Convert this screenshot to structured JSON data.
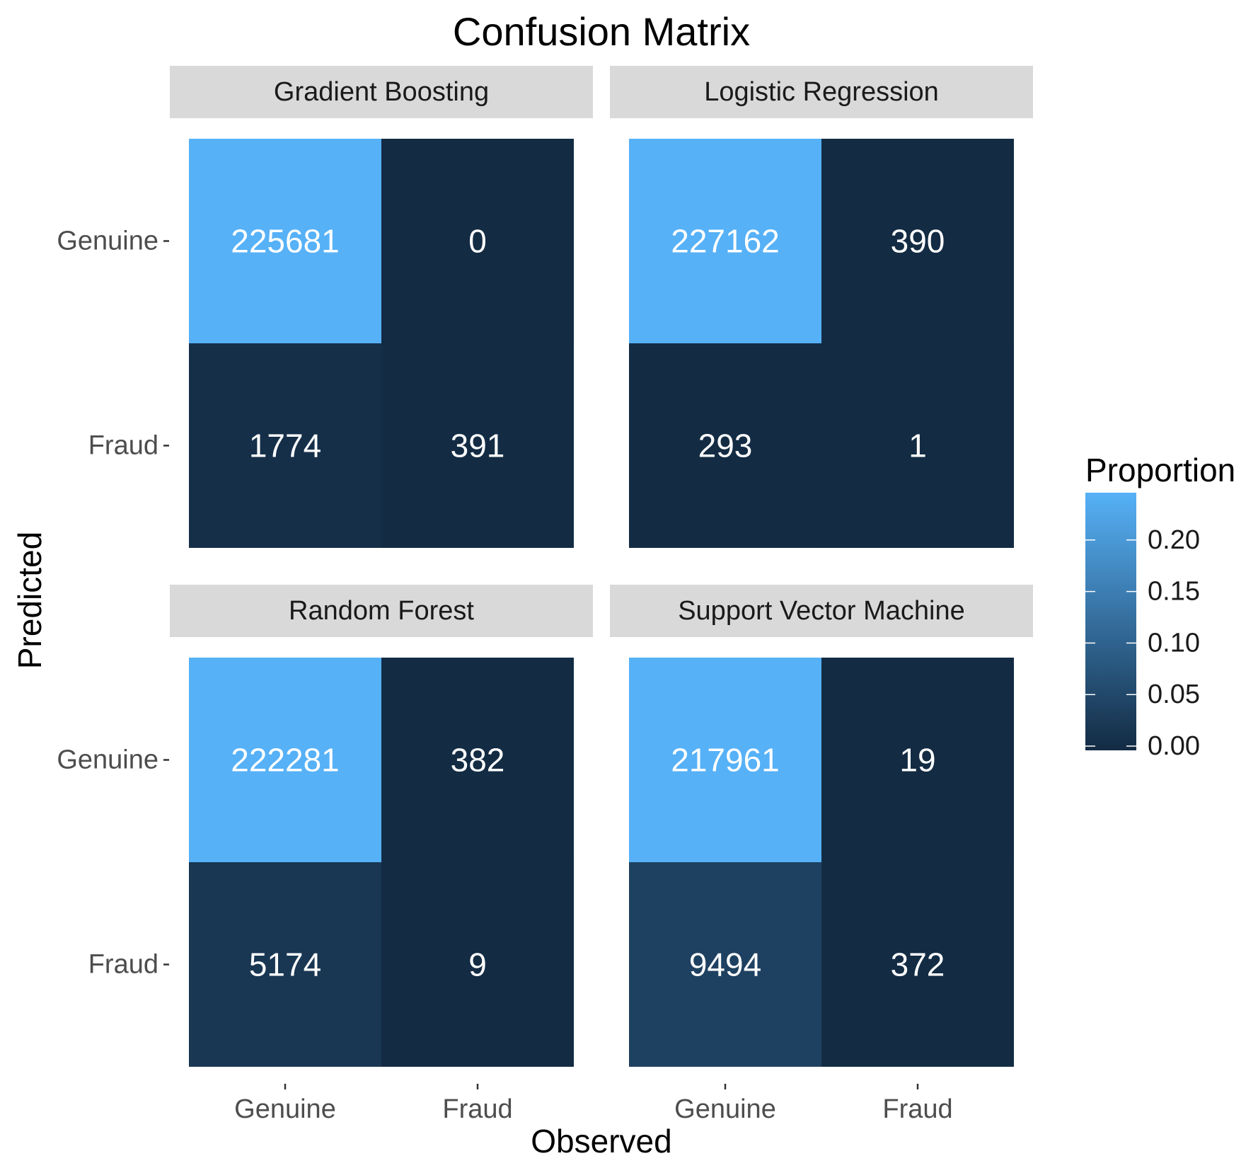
{
  "chart_data": {
    "type": "heatmap",
    "title": "Confusion Matrix",
    "xlabel": "Observed",
    "ylabel": "Predicted",
    "x_categories": [
      "Genuine",
      "Fraud"
    ],
    "y_categories": [
      "Genuine",
      "Fraud"
    ],
    "panels": [
      {
        "name": "Gradient Boosting",
        "cells": [
          [
            225681,
            0
          ],
          [
            1774,
            391
          ]
        ]
      },
      {
        "name": "Logistic Regression",
        "cells": [
          [
            227162,
            390
          ],
          [
            293,
            1
          ]
        ]
      },
      {
        "name": "Random Forest",
        "cells": [
          [
            222281,
            382
          ],
          [
            5174,
            9
          ]
        ]
      },
      {
        "name": "Support Vector Machine",
        "cells": [
          [
            217961,
            19
          ],
          [
            9494,
            372
          ]
        ]
      }
    ],
    "legend": {
      "title": "Proportion",
      "placement": "right",
      "range": [
        0,
        0.25
      ],
      "ticks": [
        0.0,
        0.05,
        0.1,
        0.15,
        0.2
      ],
      "tick_labels": [
        "0.00",
        "0.05",
        "0.10",
        "0.15",
        "0.20"
      ],
      "color_low": "#132B43",
      "color_high": "#56B1F7"
    }
  }
}
